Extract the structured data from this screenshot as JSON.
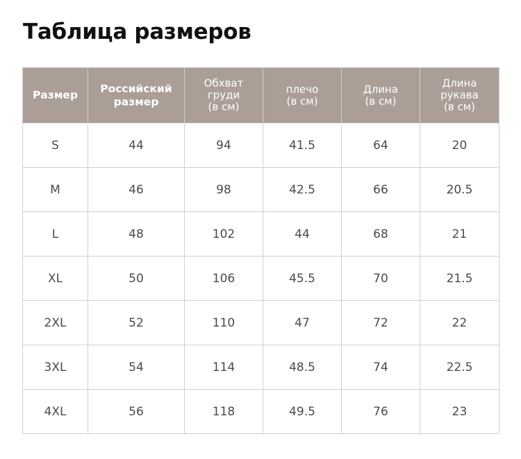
{
  "title": "Таблица размеров",
  "colors": {
    "header_bg": "#ab9e97",
    "header_text": "#ffffff",
    "cell_text": "#4a4a4a",
    "grid": "#d0d0d0"
  },
  "table": {
    "headers": [
      {
        "lines": [
          "Размер"
        ],
        "bold": true
      },
      {
        "lines": [
          "Российский",
          "размер"
        ],
        "bold": true
      },
      {
        "lines": [
          "Обхват",
          "груди",
          "(в см)"
        ],
        "bold": false
      },
      {
        "lines": [
          "плечо",
          "(в см)"
        ],
        "bold": false
      },
      {
        "lines": [
          "Длина",
          "(в см)"
        ],
        "bold": false
      },
      {
        "lines": [
          "Длина",
          "рукава",
          "(в см)"
        ],
        "bold": false
      }
    ],
    "rows": [
      [
        "S",
        "44",
        "94",
        "41.5",
        "64",
        "20"
      ],
      [
        "M",
        "46",
        "98",
        "42.5",
        "66",
        "20.5"
      ],
      [
        "L",
        "48",
        "102",
        "44",
        "68",
        "21"
      ],
      [
        "XL",
        "50",
        "106",
        "45.5",
        "70",
        "21.5"
      ],
      [
        "2XL",
        "52",
        "110",
        "47",
        "72",
        "22"
      ],
      [
        "3XL",
        "54",
        "114",
        "48.5",
        "74",
        "22.5"
      ],
      [
        "4XL",
        "56",
        "118",
        "49.5",
        "76",
        "23"
      ]
    ]
  }
}
